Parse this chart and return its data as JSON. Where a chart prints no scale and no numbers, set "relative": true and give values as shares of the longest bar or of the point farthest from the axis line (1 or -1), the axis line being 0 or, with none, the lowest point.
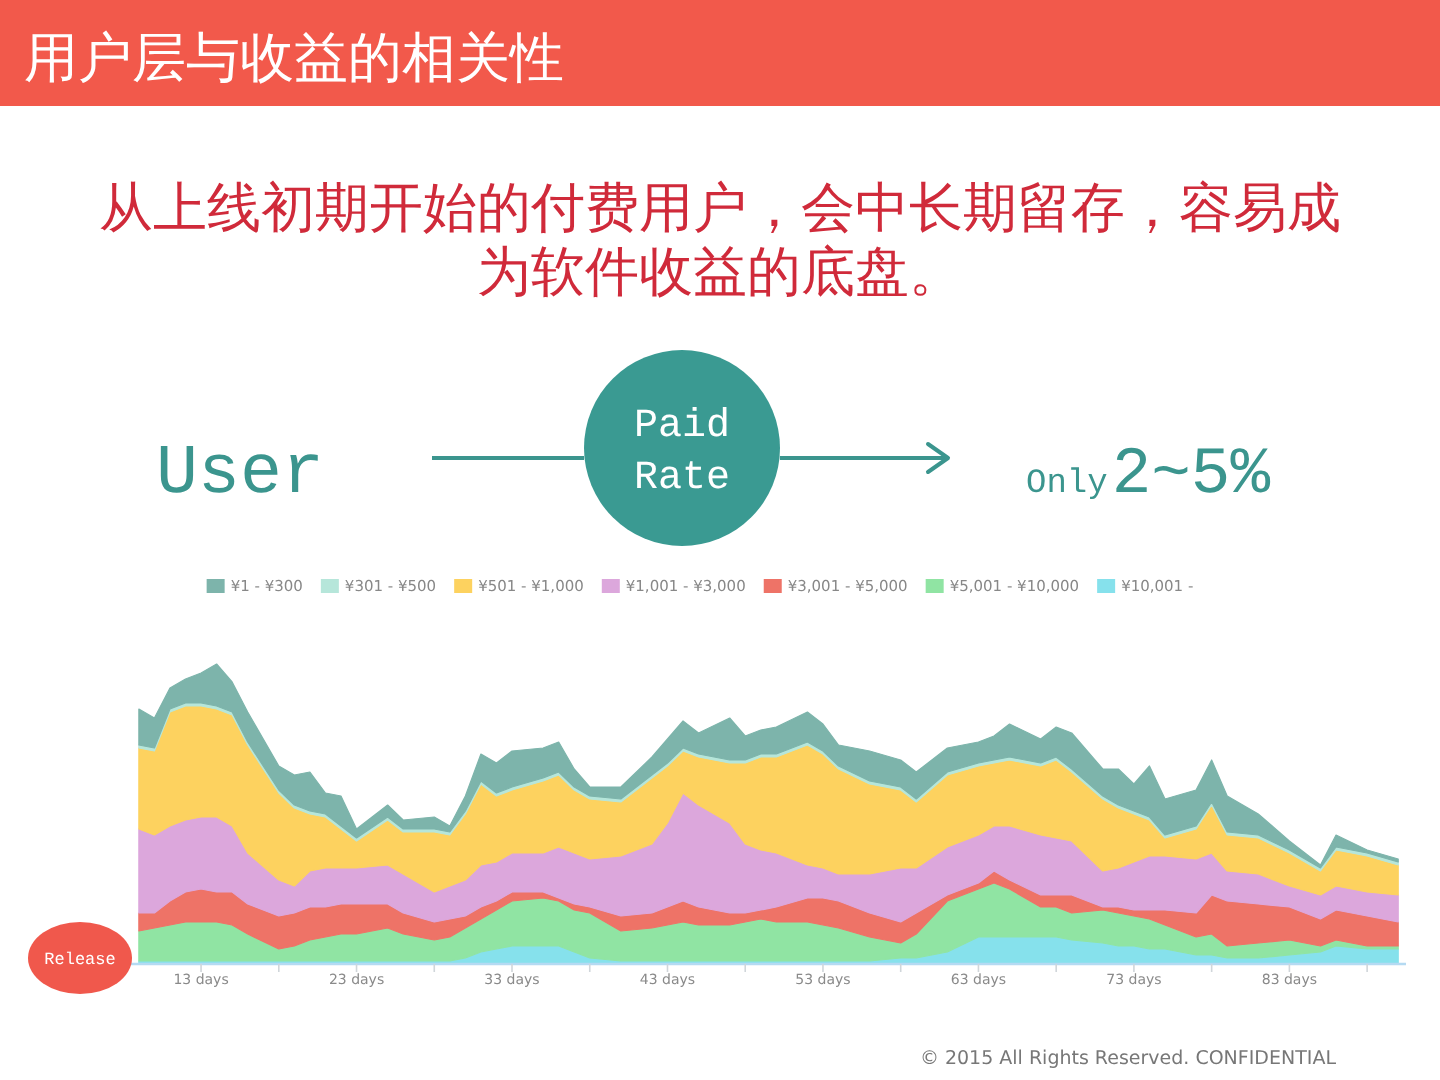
{
  "chart_data": {
    "type": "area",
    "title": "用户层与收益的相关性",
    "subtitle": "从上线初期开始的付费用户，会中长期留存，容易成为软件收益的底盘。",
    "stacked": true,
    "relative": true,
    "legend": "top",
    "x": [
      9,
      10,
      11,
      12,
      13,
      14,
      15,
      16,
      18,
      19,
      20,
      21,
      22,
      23,
      25,
      26,
      28,
      29,
      30,
      31,
      32,
      33,
      35,
      36,
      37,
      38,
      40,
      42,
      43,
      44,
      45,
      47,
      48,
      49,
      50,
      52,
      53,
      54,
      56,
      58,
      59,
      61,
      63,
      64,
      65,
      67,
      68,
      69,
      71,
      72,
      73,
      74,
      75,
      77,
      78,
      79,
      81,
      83,
      85,
      86,
      88,
      90
    ],
    "xlim": [
      6.5,
      90.5
    ],
    "xticks": [
      {
        "value": 13,
        "label": "13 days"
      },
      {
        "value": 18,
        "label": null
      },
      {
        "value": 23,
        "label": "23 days"
      },
      {
        "value": 28,
        "label": null
      },
      {
        "value": 33,
        "label": "33 days"
      },
      {
        "value": 38,
        "label": null
      },
      {
        "value": 43,
        "label": "43 days"
      },
      {
        "value": 48,
        "label": null
      },
      {
        "value": 53,
        "label": "53 days"
      },
      {
        "value": 58,
        "label": null
      },
      {
        "value": 63,
        "label": "63 days"
      },
      {
        "value": 68,
        "label": null
      },
      {
        "value": 73,
        "label": "73 days"
      },
      {
        "value": 78,
        "label": null
      },
      {
        "value": 83,
        "label": "83 days"
      },
      {
        "value": 88,
        "label": null
      }
    ],
    "series": [
      {
        "name": "¥10,001 -",
        "color": "#86e1ec",
        "values": [
          0.01,
          0.01,
          0.01,
          0.01,
          0.01,
          0.01,
          0.01,
          0.01,
          0.01,
          0.01,
          0.01,
          0.01,
          0.01,
          0.01,
          0.01,
          0.01,
          0.01,
          0.01,
          0.02,
          0.04,
          0.05,
          0.06,
          0.06,
          0.06,
          0.04,
          0.02,
          0.01,
          0.01,
          0.01,
          0.01,
          0.01,
          0.01,
          0.01,
          0.01,
          0.01,
          0.01,
          0.01,
          0.01,
          0.01,
          0.02,
          0.02,
          0.04,
          0.09,
          0.09,
          0.09,
          0.09,
          0.09,
          0.08,
          0.07,
          0.06,
          0.06,
          0.05,
          0.05,
          0.03,
          0.03,
          0.02,
          0.02,
          0.03,
          0.04,
          0.06,
          0.05,
          0.05
        ]
      },
      {
        "name": "¥5,001 - ¥10,000",
        "color": "#90e4a3",
        "values": [
          0.1,
          0.11,
          0.12,
          0.13,
          0.13,
          0.13,
          0.12,
          0.09,
          0.04,
          0.05,
          0.07,
          0.08,
          0.09,
          0.09,
          0.11,
          0.09,
          0.07,
          0.08,
          0.1,
          0.11,
          0.13,
          0.15,
          0.16,
          0.15,
          0.14,
          0.15,
          0.1,
          0.11,
          0.12,
          0.13,
          0.12,
          0.12,
          0.13,
          0.14,
          0.13,
          0.13,
          0.12,
          0.11,
          0.08,
          0.05,
          0.08,
          0.17,
          0.16,
          0.18,
          0.16,
          0.1,
          0.1,
          0.09,
          0.11,
          0.11,
          0.1,
          0.1,
          0.08,
          0.06,
          0.07,
          0.04,
          0.05,
          0.05,
          0.02,
          0.02,
          0.01,
          0.01
        ]
      },
      {
        "name": "¥3,001 - ¥5,000",
        "color": "#ee7367",
        "values": [
          0.06,
          0.05,
          0.08,
          0.1,
          0.11,
          0.1,
          0.11,
          0.1,
          0.11,
          0.11,
          0.11,
          0.1,
          0.1,
          0.1,
          0.08,
          0.07,
          0.06,
          0.06,
          0.04,
          0.04,
          0.03,
          0.03,
          0.02,
          0.01,
          0.02,
          0.02,
          0.05,
          0.05,
          0.06,
          0.07,
          0.06,
          0.04,
          0.03,
          0.03,
          0.05,
          0.08,
          0.09,
          0.09,
          0.08,
          0.07,
          0.07,
          0.02,
          0.02,
          0.04,
          0.03,
          0.04,
          0.04,
          0.06,
          0.01,
          0.02,
          0.02,
          0.03,
          0.05,
          0.08,
          0.13,
          0.15,
          0.13,
          0.11,
          0.09,
          0.1,
          0.1,
          0.08
        ]
      },
      {
        "name": "¥1,001 - ¥3,000",
        "color": "#dca7dc",
        "values": [
          0.28,
          0.26,
          0.25,
          0.24,
          0.24,
          0.25,
          0.22,
          0.17,
          0.12,
          0.09,
          0.12,
          0.13,
          0.12,
          0.12,
          0.13,
          0.13,
          0.1,
          0.11,
          0.12,
          0.14,
          0.13,
          0.13,
          0.13,
          0.17,
          0.17,
          0.16,
          0.2,
          0.23,
          0.28,
          0.36,
          0.34,
          0.3,
          0.23,
          0.2,
          0.18,
          0.11,
          0.1,
          0.09,
          0.13,
          0.18,
          0.15,
          0.16,
          0.16,
          0.15,
          0.18,
          0.2,
          0.19,
          0.18,
          0.12,
          0.13,
          0.16,
          0.18,
          0.18,
          0.18,
          0.14,
          0.1,
          0.1,
          0.07,
          0.08,
          0.08,
          0.08,
          0.09
        ]
      },
      {
        "name": "¥501 - ¥1,000",
        "color": "#fdd25f",
        "values": [
          0.27,
          0.28,
          0.38,
          0.38,
          0.37,
          0.36,
          0.37,
          0.36,
          0.29,
          0.26,
          0.19,
          0.17,
          0.13,
          0.09,
          0.15,
          0.14,
          0.2,
          0.17,
          0.22,
          0.27,
          0.22,
          0.21,
          0.24,
          0.24,
          0.21,
          0.2,
          0.18,
          0.22,
          0.19,
          0.14,
          0.16,
          0.2,
          0.27,
          0.31,
          0.32,
          0.4,
          0.38,
          0.35,
          0.3,
          0.26,
          0.22,
          0.24,
          0.23,
          0.21,
          0.22,
          0.23,
          0.26,
          0.23,
          0.24,
          0.2,
          0.16,
          0.12,
          0.06,
          0.1,
          0.16,
          0.12,
          0.12,
          0.11,
          0.08,
          0.12,
          0.12,
          0.1
        ]
      },
      {
        "name": "¥301 - ¥500",
        "color": "#b6e6da",
        "values": [
          0.01,
          0.01,
          0.01,
          0.01,
          0.01,
          0.01,
          0.01,
          0.01,
          0.01,
          0.01,
          0.01,
          0.01,
          0.01,
          0.01,
          0.01,
          0.01,
          0.01,
          0.01,
          0.01,
          0.01,
          0.01,
          0.01,
          0.01,
          0.01,
          0.01,
          0.01,
          0.01,
          0.01,
          0.01,
          0.01,
          0.01,
          0.01,
          0.01,
          0.01,
          0.01,
          0.01,
          0.01,
          0.01,
          0.01,
          0.01,
          0.01,
          0.01,
          0.01,
          0.01,
          0.01,
          0.01,
          0.01,
          0.01,
          0.01,
          0.01,
          0.01,
          0.01,
          0.01,
          0.01,
          0.01,
          0.01,
          0.01,
          0.01,
          0.01,
          0.01,
          0.01,
          0.01
        ]
      },
      {
        "name": "¥1 - ¥300",
        "color": "#7db4ab",
        "values": [
          0.12,
          0.1,
          0.07,
          0.08,
          0.1,
          0.14,
          0.1,
          0.1,
          0.08,
          0.1,
          0.13,
          0.07,
          0.1,
          0.03,
          0.04,
          0.03,
          0.04,
          0.02,
          0.05,
          0.09,
          0.1,
          0.12,
          0.1,
          0.1,
          0.06,
          0.03,
          0.04,
          0.06,
          0.08,
          0.09,
          0.07,
          0.14,
          0.08,
          0.08,
          0.09,
          0.1,
          0.09,
          0.07,
          0.1,
          0.09,
          0.09,
          0.08,
          0.07,
          0.08,
          0.11,
          0.08,
          0.1,
          0.12,
          0.09,
          0.12,
          0.09,
          0.17,
          0.12,
          0.12,
          0.14,
          0.12,
          0.07,
          0.03,
          0.01,
          0.04,
          0.01,
          0.01
        ]
      }
    ],
    "annotations": [
      "User",
      "Paid Rate",
      "Only",
      "2~5%",
      "Release",
      "© 2015 All Rights Reserved. CONFIDENTIAL"
    ]
  }
}
